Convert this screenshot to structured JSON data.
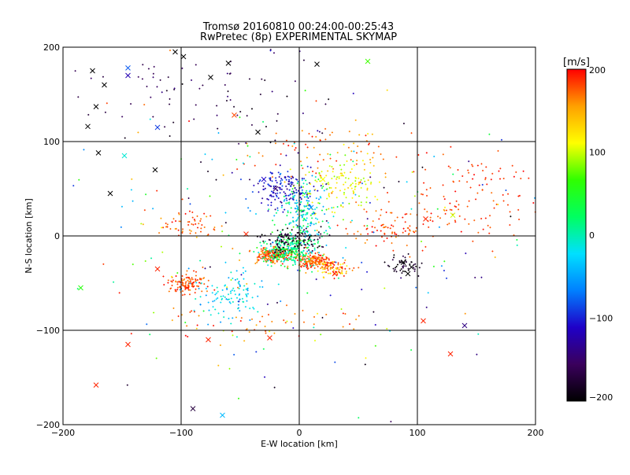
{
  "chart_data": {
    "type": "scatter",
    "title_line1": "Tromsø 20160810 00:24:00-00:25:43",
    "title_line2": "RwPretec (8p) EXPERIMENTAL SKYMAP",
    "xlabel": "E-W location [km]",
    "ylabel": "N-S location [km]",
    "xlim": [
      -200,
      200
    ],
    "ylim": [
      -200,
      200
    ],
    "xticks": [
      -200,
      -100,
      0,
      100,
      200
    ],
    "yticks": [
      -200,
      -100,
      0,
      100,
      200
    ],
    "grid": true,
    "colorbar": {
      "label": "[m/s]",
      "min": -200,
      "max": 200,
      "ticks": [
        200,
        100,
        0,
        -100,
        -200
      ],
      "colors": [
        "#000000",
        "#3a005c",
        "#1f00c8",
        "#0080ff",
        "#00e0ff",
        "#00ff60",
        "#30ff00",
        "#ffff00",
        "#ffa000",
        "#ff0000"
      ]
    },
    "markers": {
      "dot": "point measurement",
      "cross": "x measurement"
    },
    "clusters": [
      {
        "cx": -22,
        "cy": -20,
        "sx": 8,
        "sy": 4,
        "vmin": 150,
        "vmax": 200,
        "n": 220
      },
      {
        "cx": 12,
        "cy": -27,
        "sx": 8,
        "sy": 4,
        "vmin": 150,
        "vmax": 200,
        "n": 200
      },
      {
        "cx": 30,
        "cy": -35,
        "sx": 8,
        "sy": 4,
        "vmin": 110,
        "vmax": 200,
        "n": 70
      },
      {
        "cx": -95,
        "cy": -50,
        "sx": 9,
        "sy": 5,
        "vmin": 160,
        "vmax": 200,
        "n": 110
      },
      {
        "cx": -10,
        "cy": -15,
        "sx": 10,
        "sy": 8,
        "vmin": -20,
        "vmax": 60,
        "n": 260
      },
      {
        "cx": -5,
        "cy": -5,
        "sx": 12,
        "sy": 6,
        "vmin": -200,
        "vmax": -160,
        "n": 130
      },
      {
        "cx": 5,
        "cy": 20,
        "sx": 10,
        "sy": 20,
        "vmin": -60,
        "vmax": 50,
        "n": 220
      },
      {
        "cx": -15,
        "cy": 50,
        "sx": 12,
        "sy": 10,
        "vmin": -140,
        "vmax": -80,
        "n": 150
      },
      {
        "cx": 35,
        "cy": 55,
        "sx": 18,
        "sy": 15,
        "vmin": 80,
        "vmax": 140,
        "n": 130
      },
      {
        "cx": -60,
        "cy": -65,
        "sx": 15,
        "sy": 12,
        "vmin": -60,
        "vmax": 0,
        "n": 110
      },
      {
        "cx": 90,
        "cy": -30,
        "sx": 6,
        "sy": 5,
        "vmin": -200,
        "vmax": -160,
        "n": 50
      },
      {
        "cx": 80,
        "cy": 10,
        "sx": 18,
        "sy": 12,
        "vmin": 160,
        "vmax": 200,
        "n": 90
      },
      {
        "cx": 150,
        "cy": 40,
        "sx": 25,
        "sy": 25,
        "vmin": 170,
        "vmax": 200,
        "n": 110
      },
      {
        "cx": -100,
        "cy": 10,
        "sx": 15,
        "sy": 10,
        "vmin": 150,
        "vmax": 200,
        "n": 60
      },
      {
        "cx": -80,
        "cy": 150,
        "sx": 60,
        "sy": 30,
        "vmin": -200,
        "vmax": -140,
        "n": 80
      },
      {
        "cx": 20,
        "cy": 90,
        "sx": 40,
        "sy": 15,
        "vmin": 140,
        "vmax": 200,
        "n": 80
      },
      {
        "cx": -30,
        "cy": -90,
        "sx": 40,
        "sy": 10,
        "vmin": 150,
        "vmax": 200,
        "n": 50
      },
      {
        "cx": 0,
        "cy": 0,
        "sx": 90,
        "sy": 80,
        "vmin": -200,
        "vmax": 200,
        "n": 250
      }
    ],
    "crosses": [
      {
        "x": -175,
        "y": 175,
        "v": -200
      },
      {
        "x": -165,
        "y": 160,
        "v": -200
      },
      {
        "x": -172,
        "y": 137,
        "v": -200
      },
      {
        "x": -179,
        "y": 116,
        "v": -200
      },
      {
        "x": -145,
        "y": 178,
        "v": -80
      },
      {
        "x": -145,
        "y": 170,
        "v": -120
      },
      {
        "x": -120,
        "y": 115,
        "v": -90
      },
      {
        "x": -98,
        "y": 190,
        "v": -200
      },
      {
        "x": -60,
        "y": 183,
        "v": -200
      },
      {
        "x": -75,
        "y": 168,
        "v": -200
      },
      {
        "x": 15,
        "y": 182,
        "v": -200
      },
      {
        "x": -35,
        "y": 110,
        "v": -200
      },
      {
        "x": -55,
        "y": 128,
        "v": 180
      },
      {
        "x": -105,
        "y": 195,
        "v": -200
      },
      {
        "x": 58,
        "y": 185,
        "v": 70
      },
      {
        "x": -170,
        "y": 88,
        "v": -200
      },
      {
        "x": -160,
        "y": 45,
        "v": -200
      },
      {
        "x": -122,
        "y": 70,
        "v": -200
      },
      {
        "x": -148,
        "y": 85,
        "v": -10
      },
      {
        "x": -185,
        "y": -55,
        "v": 60
      },
      {
        "x": -172,
        "y": -158,
        "v": 190
      },
      {
        "x": -145,
        "y": -115,
        "v": 190
      },
      {
        "x": -90,
        "y": -183,
        "v": -170
      },
      {
        "x": -65,
        "y": -190,
        "v": -40
      },
      {
        "x": -77,
        "y": -110,
        "v": 190
      },
      {
        "x": -25,
        "y": -108,
        "v": 190
      },
      {
        "x": 105,
        "y": -90,
        "v": 190
      },
      {
        "x": 128,
        "y": -125,
        "v": 190
      },
      {
        "x": 140,
        "y": -95,
        "v": -140
      },
      {
        "x": 130,
        "y": 22,
        "v": 100
      },
      {
        "x": 107,
        "y": 18,
        "v": 190
      },
      {
        "x": 92,
        "y": -40,
        "v": -200
      },
      {
        "x": 88,
        "y": -28,
        "v": -200
      },
      {
        "x": 95,
        "y": -33,
        "v": -200
      },
      {
        "x": -45,
        "y": 2,
        "v": 190
      },
      {
        "x": -120,
        "y": -35,
        "v": 190
      },
      {
        "x": -95,
        "y": -55,
        "v": 190
      },
      {
        "x": 30,
        "y": -40,
        "v": 190
      },
      {
        "x": 20,
        "y": 60,
        "v": 110
      },
      {
        "x": -20,
        "y": 50,
        "v": -150
      },
      {
        "x": -30,
        "y": 60,
        "v": -110
      },
      {
        "x": 10,
        "y": 30,
        "v": -60
      }
    ]
  }
}
